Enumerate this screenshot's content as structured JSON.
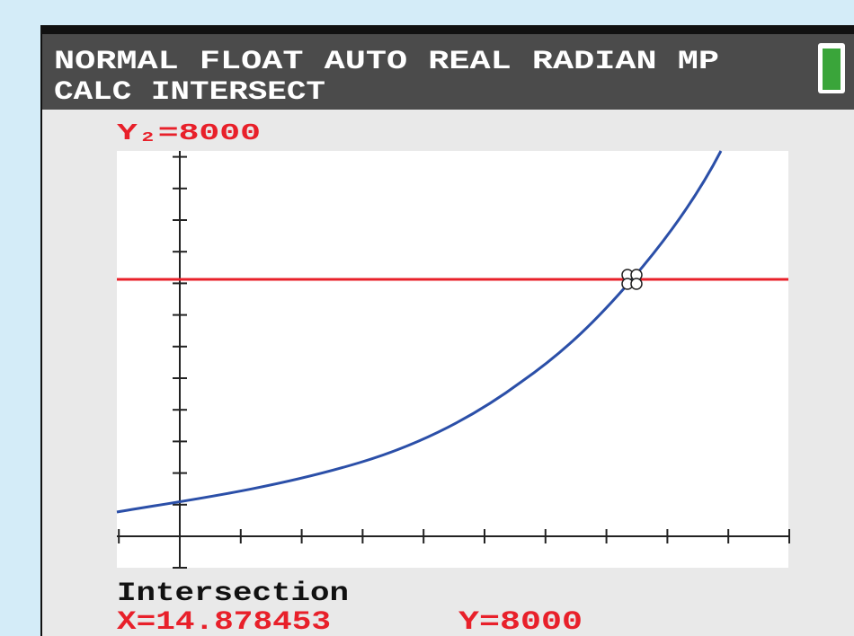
{
  "header": {
    "mode": "NORMAL FLOAT AUTO REAL RADIAN MP",
    "menu": "CALC INTERSECT"
  },
  "graph": {
    "equation": "Y₂=8000"
  },
  "result": {
    "title": "Intersection",
    "x": "X=14.878453",
    "y": "Y=8000"
  }
}
